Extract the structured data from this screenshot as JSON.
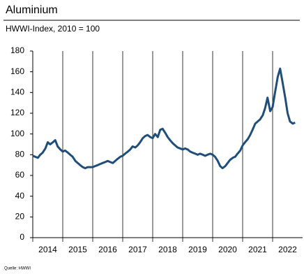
{
  "chart_data": {
    "type": "line",
    "title": "Aluminium",
    "subtitle": "HWWI-Index, 2010 = 100",
    "source": "Quelle: HWWI",
    "x": [
      2014,
      2014.08,
      2014.17,
      2014.25,
      2014.33,
      2014.42,
      2014.5,
      2014.58,
      2014.67,
      2014.75,
      2014.83,
      2014.92,
      2015,
      2015.08,
      2015.17,
      2015.25,
      2015.33,
      2015.42,
      2015.5,
      2015.58,
      2015.67,
      2015.75,
      2015.83,
      2015.92,
      2016,
      2016.08,
      2016.17,
      2016.25,
      2016.33,
      2016.42,
      2016.5,
      2016.58,
      2016.67,
      2016.75,
      2016.83,
      2016.92,
      2017,
      2017.08,
      2017.17,
      2017.25,
      2017.33,
      2017.42,
      2017.5,
      2017.58,
      2017.67,
      2017.75,
      2017.83,
      2017.92,
      2018,
      2018.08,
      2018.17,
      2018.25,
      2018.33,
      2018.42,
      2018.5,
      2018.58,
      2018.67,
      2018.75,
      2018.83,
      2018.92,
      2019,
      2019.08,
      2019.17,
      2019.25,
      2019.33,
      2019.42,
      2019.5,
      2019.58,
      2019.67,
      2019.75,
      2019.83,
      2019.92,
      2020,
      2020.08,
      2020.17,
      2020.25,
      2020.33,
      2020.42,
      2020.5,
      2020.58,
      2020.67,
      2020.75,
      2020.83,
      2020.92,
      2021,
      2021.08,
      2021.17,
      2021.25,
      2021.33,
      2021.42,
      2021.5,
      2021.58,
      2021.67,
      2021.75,
      2021.83,
      2021.92,
      2022,
      2022.08,
      2022.17,
      2022.25,
      2022.33,
      2022.42,
      2022.5,
      2022.58,
      2022.67,
      2022.75
    ],
    "series": [
      {
        "name": "Aluminium",
        "color": "#1f4e79",
        "values": [
          79,
          78,
          77,
          80,
          82,
          86,
          92,
          90,
          92,
          94,
          88,
          85,
          83,
          84,
          82,
          80,
          78,
          74,
          72,
          70,
          68,
          67,
          68,
          68,
          68,
          69,
          70,
          71,
          72,
          73,
          74,
          73,
          72,
          74,
          76,
          78,
          79,
          81,
          83,
          85,
          88,
          87,
          89,
          92,
          96,
          98,
          99,
          97,
          96,
          100,
          97,
          104,
          105,
          101,
          97,
          94,
          91,
          89,
          87,
          86,
          85,
          86,
          85,
          83,
          82,
          81,
          80,
          81,
          80,
          79,
          80,
          81,
          80,
          78,
          74,
          69,
          67,
          69,
          72,
          75,
          77,
          78,
          81,
          84,
          89,
          92,
          95,
          99,
          104,
          110,
          112,
          114,
          118,
          125,
          135,
          122,
          126,
          140,
          155,
          163,
          150,
          135,
          120,
          112,
          110,
          111
        ]
      }
    ],
    "xlim": [
      2014,
      2023
    ],
    "xticks": [
      2014,
      2015,
      2016,
      2017,
      2018,
      2019,
      2020,
      2021,
      2022
    ],
    "ylim": [
      0,
      180
    ],
    "yticks": [
      0,
      20,
      40,
      60,
      80,
      100,
      120,
      140,
      160,
      180
    ],
    "grid": true
  }
}
